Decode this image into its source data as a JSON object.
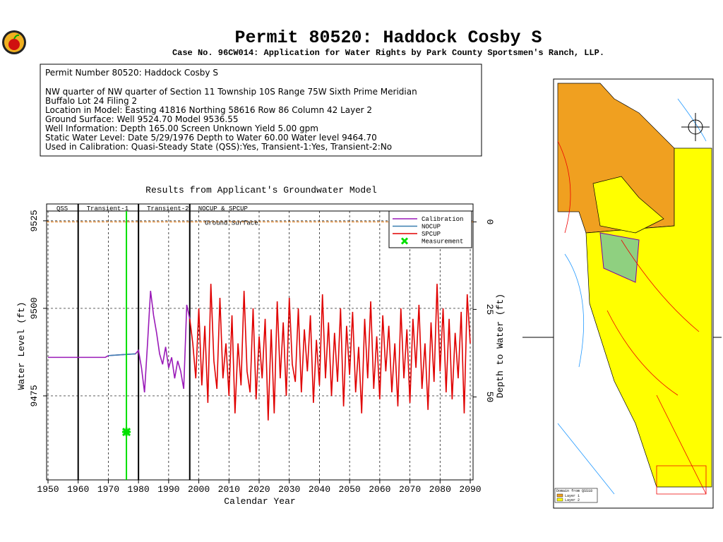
{
  "header": {
    "title": "Permit 80520:  Haddock Cosby S",
    "subtitle": "Case No. 96CW014: Application for Water Rights by Park County Sportsmen's Ranch, LLP."
  },
  "info": {
    "lines": [
      "Permit Number 80520: Haddock Cosby S",
      "NW quarter of NW quarter of Section 11 Township 10S Range 75W Sixth Prime Meridian",
      "Buffalo Lot 24 Filing 2",
      "Location in Model: Easting 41816 Northing  58616 Row   86 Column 42 Layer 2",
      "Ground Surface: Well   9524.70 Model  9536.55",
      "Well Information: Depth    165.00 Screen Unknown Yield        5.00 gpm",
      "Static Water Level: Date   5/29/1976 Depth to Water      60.00 Water level   9464.70",
      "Used in Calibration: Quasi-Steady State (QSS):Yes, Transient-1:Yes, Transient-2:No"
    ]
  },
  "chart_data": {
    "type": "line",
    "title": "Results from Applicant's Groundwater Model",
    "xlabel": "Calendar Year",
    "ylabel": "Water Level (ft)",
    "y2label": "Depth to Water (ft)",
    "xlim": [
      1950,
      2090
    ],
    "xticks": [
      1950,
      1960,
      1970,
      1980,
      1990,
      2000,
      2010,
      2020,
      2030,
      2040,
      2050,
      2060,
      2070,
      2080,
      2090
    ],
    "ylim": [
      9451,
      9527.8
    ],
    "yticks": [
      9475,
      9500,
      9525
    ],
    "y2lim": [
      73.7,
      -3.1
    ],
    "y2ticks": [
      0,
      25,
      50
    ],
    "grid": true,
    "ground_surface": 9524.7,
    "ground_surface_label": "Ground Surface",
    "ground_surface_color": "#e07000",
    "periods": [
      {
        "label": "QSS",
        "start": 1950,
        "end": 1960
      },
      {
        "label": "Transient-1",
        "start": 1960,
        "end": 1980
      },
      {
        "label": "Transient-2",
        "start": 1980,
        "end": 1997
      },
      {
        "label": "NOCUP & SPCUP",
        "start": 1997,
        "end": 2090
      }
    ],
    "series": [
      {
        "name": "Calibration",
        "color": "#9a1ab8",
        "style": "line",
        "x": [
          1950,
          1969,
          1970,
          1979,
          1980,
          1981,
          1982,
          1983,
          1984,
          1985,
          1986,
          1987,
          1988,
          1989,
          1990,
          1991,
          1992,
          1993,
          1994,
          1995,
          1996,
          1997
        ],
        "values": [
          9486,
          9486,
          9486.5,
          9487,
          9488,
          9483,
          9476,
          9490,
          9505,
          9498,
          9493,
          9487,
          9484,
          9489,
          9483,
          9486,
          9480,
          9485,
          9482,
          9477,
          9501,
          9497
        ]
      },
      {
        "name": "NOCUP",
        "color": "#3a7fb0",
        "style": "line",
        "x": [
          1970,
          1975,
          1979
        ],
        "values": [
          9486.5,
          9486.8,
          9487
        ]
      },
      {
        "name": "SPCUP",
        "color": "#e00000",
        "style": "line",
        "x": [
          1997,
          1998,
          1999,
          2000,
          2001,
          2002,
          2003,
          2004,
          2005,
          2006,
          2007,
          2008,
          2009,
          2010,
          2011,
          2012,
          2013,
          2014,
          2015,
          2016,
          2017,
          2018,
          2019,
          2020,
          2021,
          2022,
          2023,
          2024,
          2025,
          2026,
          2027,
          2028,
          2029,
          2030,
          2031,
          2032,
          2033,
          2034,
          2035,
          2036,
          2037,
          2038,
          2039,
          2040,
          2041,
          2042,
          2043,
          2044,
          2045,
          2046,
          2047,
          2048,
          2049,
          2050,
          2051,
          2052,
          2053,
          2054,
          2055,
          2056,
          2057,
          2058,
          2059,
          2060,
          2061,
          2062,
          2063,
          2064,
          2065,
          2066,
          2067,
          2068,
          2069,
          2070,
          2071,
          2072,
          2073,
          2074,
          2075,
          2076,
          2077,
          2078,
          2079,
          2080,
          2081,
          2082,
          2083,
          2084,
          2085,
          2086,
          2087,
          2088,
          2089,
          2090
        ],
        "values": [
          9497,
          9490,
          9480,
          9500,
          9478,
          9495,
          9473,
          9507,
          9485,
          9477,
          9503,
          9480,
          9490,
          9475,
          9498,
          9470,
          9490,
          9478,
          9505,
          9482,
          9476,
          9500,
          9474,
          9492,
          9480,
          9497,
          9468,
          9494,
          9470,
          9502,
          9480,
          9496,
          9475,
          9503,
          9484,
          9479,
          9500,
          9476,
          9494,
          9482,
          9498,
          9473,
          9491,
          9478,
          9504,
          9480,
          9496,
          9475,
          9493,
          9479,
          9500,
          9472,
          9495,
          9481,
          9499,
          9476,
          9489,
          9470,
          9497,
          9480,
          9502,
          9477,
          9492,
          9474,
          9498,
          9482,
          9495,
          9476,
          9490,
          9472,
          9500,
          9480,
          9494,
          9473,
          9497,
          9483,
          9501,
          9477,
          9490,
          9471,
          9496,
          9479,
          9507,
          9482,
          9500,
          9476,
          9497,
          9474,
          9493,
          9480,
          9499,
          9470,
          9504,
          9490
        ]
      },
      {
        "name": "Measurement",
        "color": "#00e000",
        "style": "marker",
        "x": [
          1976
        ],
        "values": [
          9464.7
        ]
      }
    ],
    "legend": "upper right"
  },
  "map": {
    "legend_title": "Domain from QSS18",
    "layers": [
      "Layer 1",
      "Layer 2"
    ]
  }
}
